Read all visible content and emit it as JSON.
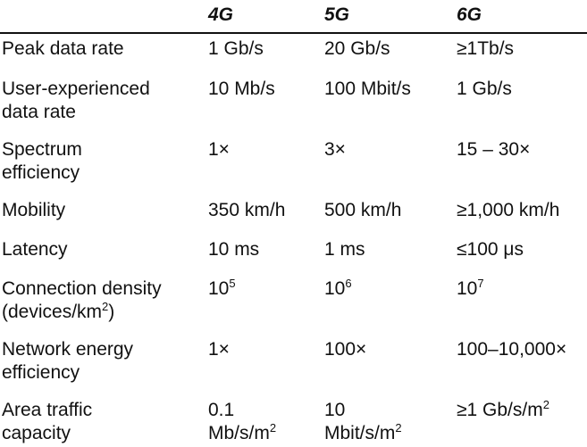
{
  "header": {
    "col0": "",
    "col1": "4G",
    "col2": "5G",
    "col3": "6G"
  },
  "rows": [
    {
      "metric": [
        "Peak data rate"
      ],
      "g4": [
        "1 Gb/s"
      ],
      "g5": [
        "20 Gb/s"
      ],
      "g6": [
        "≥1Tb/s"
      ]
    },
    {
      "metric": [
        "User-experienced",
        "data rate"
      ],
      "g4": [
        "10 Mb/s"
      ],
      "g5": [
        "100 Mbit/s"
      ],
      "g6": [
        "1 Gb/s"
      ]
    },
    {
      "metric": [
        "Spectrum",
        "efficiency"
      ],
      "g4": [
        "1×"
      ],
      "g5": [
        "3×"
      ],
      "g6": [
        "15 – 30×"
      ]
    },
    {
      "metric": [
        "Mobility"
      ],
      "g4": [
        "350 km/h"
      ],
      "g5": [
        "500 km/h"
      ],
      "g6": [
        "≥1,000 km/h"
      ]
    },
    {
      "metric": [
        "Latency"
      ],
      "g4": [
        "10 ms"
      ],
      "g5": [
        "1 ms"
      ],
      "g6": [
        "≤100 μs"
      ]
    },
    {
      "metric": [
        "Connection density",
        "(devices/km",
        "2",
        ")"
      ],
      "g4": [
        "10",
        "5"
      ],
      "g5": [
        "10",
        "6"
      ],
      "g6": [
        "10",
        "7"
      ]
    },
    {
      "metric": [
        "Network energy",
        "efficiency"
      ],
      "g4": [
        "1×"
      ],
      "g5": [
        "100×"
      ],
      "g6": [
        "100–10,000×"
      ]
    },
    {
      "metric": [
        "Area traffic",
        "capacity"
      ],
      "g4": [
        "0.1",
        "Mb/s/m",
        "2"
      ],
      "g5": [
        "10",
        "Mbit/s/m",
        "2"
      ],
      "g6": [
        "≥1 Gb/s/m",
        "2"
      ]
    }
  ]
}
